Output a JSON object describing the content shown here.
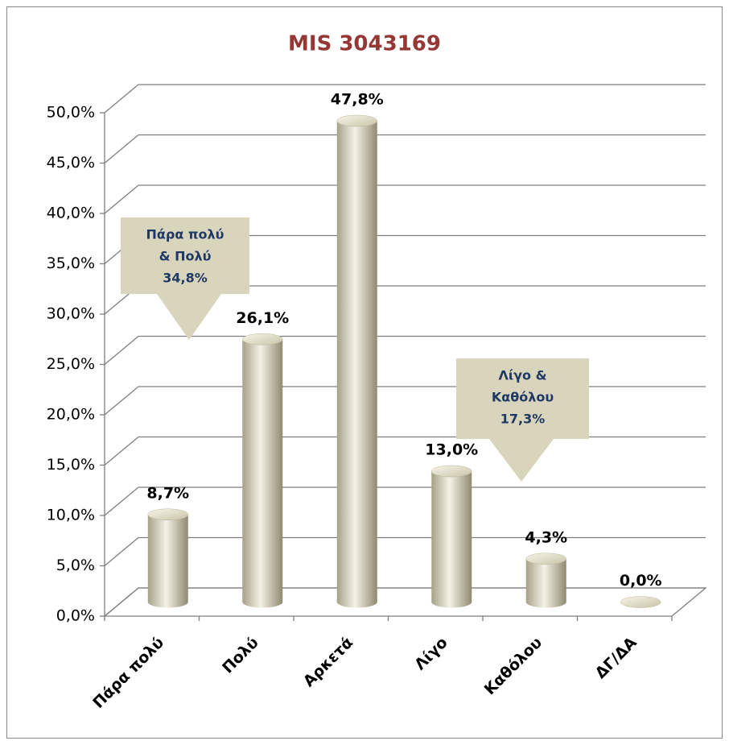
{
  "chart_data": {
    "type": "bar",
    "title": "MIS 3043169",
    "categories": [
      "Πάρα πολύ",
      "Πολύ",
      "Αρκετά",
      "Λίγο",
      "Καθόλου",
      "ΔΓ/ΔΑ"
    ],
    "values": [
      8.7,
      26.1,
      47.8,
      13.0,
      4.3,
      0.0
    ],
    "value_labels": [
      "8,7%",
      "26,1%",
      "47,8%",
      "13,0%",
      "4,3%",
      "0,0%"
    ],
    "color": "#d8d3b8",
    "ylim": [
      0,
      50
    ],
    "yticks": [
      {
        "value": 0,
        "label": "0,0%"
      },
      {
        "value": 5,
        "label": "5,0%"
      },
      {
        "value": 10,
        "label": "10,0%"
      },
      {
        "value": 15,
        "label": "15,0%"
      },
      {
        "value": 20,
        "label": "20,0%"
      },
      {
        "value": 25,
        "label": "25,0%"
      },
      {
        "value": 30,
        "label": "30,0%"
      },
      {
        "value": 35,
        "label": "35,0%"
      },
      {
        "value": 40,
        "label": "40,0%"
      },
      {
        "value": 45,
        "label": "45,0%"
      },
      {
        "value": 50,
        "label": "50,0%"
      }
    ],
    "grid": true,
    "annotations": [
      {
        "lines": [
          "Πάρα πολύ",
          "& Πολύ",
          "34,8%"
        ]
      },
      {
        "lines": [
          "Λίγο &",
          "Καθόλου",
          "17,3%"
        ]
      }
    ]
  }
}
